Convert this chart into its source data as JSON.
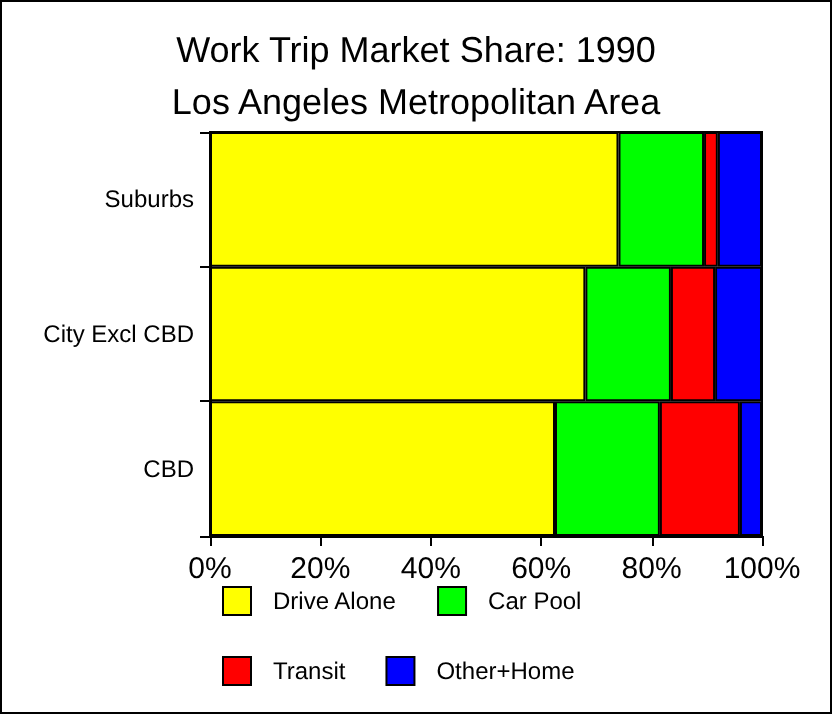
{
  "chart_data": {
    "type": "bar",
    "orientation": "horizontal",
    "stacked": true,
    "title": "Work Trip Market Share: 1990",
    "subtitle": "Los Angeles Metropolitan Area",
    "categories": [
      "Suburbs",
      "City Excl CBD",
      "CBD"
    ],
    "series": [
      {
        "name": "Drive Alone",
        "color": "#ffff00",
        "values": [
          74,
          68,
          62.5
        ]
      },
      {
        "name": "Car Pool",
        "color": "#00ff00",
        "values": [
          15.5,
          15.5,
          19
        ]
      },
      {
        "name": "Transit",
        "color": "#ff0000",
        "values": [
          2.5,
          8,
          14.5
        ]
      },
      {
        "name": "Other+Home",
        "color": "#0000ff",
        "values": [
          8,
          8.5,
          4
        ]
      }
    ],
    "xlim": [
      0,
      100
    ],
    "xticks": [
      {
        "value": 0,
        "label": "0%"
      },
      {
        "value": 20,
        "label": "20%"
      },
      {
        "value": 40,
        "label": "40%"
      },
      {
        "value": 60,
        "label": "60%"
      },
      {
        "value": 80,
        "label": "80%"
      },
      {
        "value": 100,
        "label": "100%"
      }
    ],
    "grid": false,
    "legend": "bottom"
  }
}
